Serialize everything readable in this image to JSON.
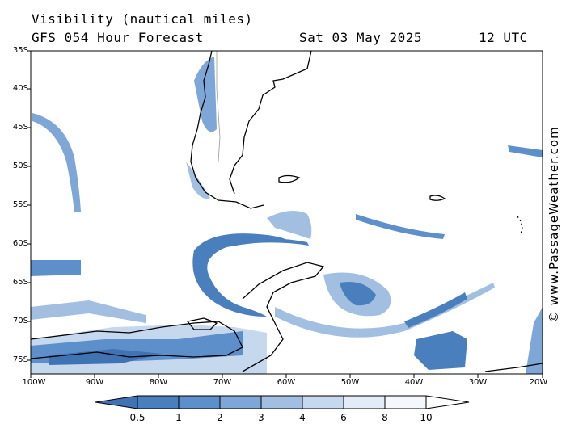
{
  "title": {
    "line1": "Visibility (nautical miles)",
    "line2": "GFS 054 Hour Forecast",
    "date": "Sat 03 May 2025",
    "time": "12 UTC"
  },
  "credit": "© www.PassageWeather.com",
  "axes": {
    "lat_labels": [
      "35S",
      "40S",
      "45S",
      "50S",
      "55S",
      "60S",
      "65S",
      "70S",
      "75S"
    ],
    "lon_labels": [
      "100W",
      "90W",
      "80W",
      "70W",
      "60W",
      "50W",
      "40W",
      "30W",
      "20W"
    ]
  },
  "colorbar": {
    "ticks": [
      "0.5",
      "1",
      "2",
      "3",
      "4",
      "6",
      "8",
      "10"
    ],
    "colors": [
      "#3f73b3",
      "#4a7fbe",
      "#5d8fca",
      "#7ea6d6",
      "#a2bfe2",
      "#c6d8ee",
      "#e2ebf7",
      "#f4f8fc",
      "#ffffff"
    ]
  }
}
